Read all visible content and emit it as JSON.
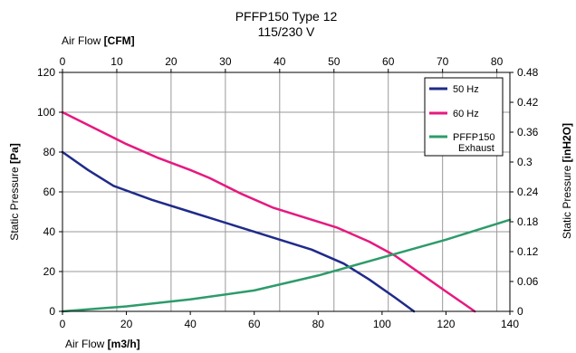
{
  "chart_data": {
    "type": "line",
    "title": "PFFP150 Type 12",
    "subtitle": "115/230 V",
    "x_bottom": {
      "label_prefix": "Air Flow ",
      "label_unit": "[m3/h]",
      "range": [
        0,
        140
      ],
      "ticks": [
        "0",
        "20",
        "40",
        "60",
        "80",
        "100",
        "120",
        "140"
      ]
    },
    "x_top": {
      "label_prefix": "Air Flow ",
      "label_unit": "[CFM]",
      "range": [
        0,
        82.4
      ],
      "ticks": [
        "0",
        "10",
        "20",
        "30",
        "40",
        "50",
        "60",
        "70",
        "80"
      ]
    },
    "y_left": {
      "label_prefix": "Static Pressure ",
      "label_unit": "[Pa]",
      "range": [
        0,
        120
      ],
      "ticks": [
        "0",
        "20",
        "40",
        "60",
        "80",
        "100",
        "120"
      ]
    },
    "y_right": {
      "label_prefix": "Static Pressure ",
      "label_unit": "[inH2O]",
      "range": [
        0,
        0.48
      ],
      "ticks": [
        "0",
        "0.06",
        "0.12",
        "0.18",
        "0.24",
        "0.3",
        "0.36",
        "0.42",
        "0.48"
      ]
    },
    "grid": true,
    "legend_position": "top-right",
    "series": [
      {
        "name": "50 Hz",
        "color": "#1f2b8a",
        "x": [
          0,
          8,
          16,
          28,
          40,
          54,
          68,
          78,
          88,
          96,
          104,
          110
        ],
        "y": [
          80,
          71,
          63,
          56,
          50,
          43,
          36,
          31,
          24,
          16,
          7,
          0
        ]
      },
      {
        "name": "60 Hz",
        "color": "#e6197f",
        "x": [
          0,
          10,
          20,
          30,
          40,
          46,
          56,
          66,
          76,
          86,
          96,
          104,
          112,
          120,
          129
        ],
        "y": [
          100,
          92,
          84,
          77,
          71,
          67,
          59,
          52,
          47,
          42,
          35,
          28,
          19,
          10,
          0
        ]
      },
      {
        "name": "PFFP150 Exhaust",
        "legend_lines": [
          "PFFP150",
          "Exhaust"
        ],
        "color": "#2e9b6a",
        "x": [
          0,
          20,
          40,
          60,
          80,
          100,
          120,
          140
        ],
        "y": [
          0,
          2.5,
          6,
          10.5,
          18,
          27,
          36,
          46
        ]
      }
    ]
  }
}
